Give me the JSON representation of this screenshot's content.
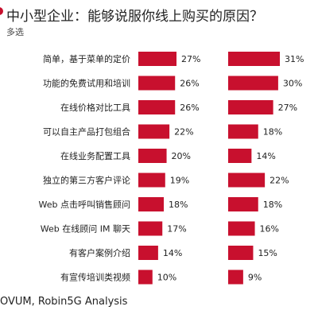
{
  "title": "中小型企业：能够说服你线上购买的原因？",
  "subtitle": "多选",
  "source": "OVUM, Robin5G Analysis",
  "colors": {
    "bar": "#c8102e",
    "accent": "#c8102e"
  },
  "chart_data": {
    "type": "bar",
    "orientation": "horizontal",
    "categories": [
      "简单，基于菜单的定价",
      "功能的免费试用和培训",
      "在线价格对比工具",
      "可以自主产品打包组合",
      "在线业务配置工具",
      "独立的第三方客户评论",
      "Web 点击呼叫销售顾问",
      "Web 在线顾问 IM 聊天",
      "有客户案例介绍",
      "有宣传培训类视频"
    ],
    "series": [
      {
        "values": [
          27,
          26,
          26,
          22,
          20,
          19,
          18,
          17,
          14,
          10
        ],
        "labels": [
          "27%",
          "26%",
          "26%",
          "22%",
          "20%",
          "19%",
          "18%",
          "17%",
          "14%",
          "10%"
        ]
      },
      {
        "values": [
          31,
          30,
          27,
          18,
          14,
          22,
          18,
          16,
          15,
          9
        ],
        "labels": [
          "31%",
          "30%",
          "27%",
          "18%",
          "14%",
          "22%",
          "18%",
          "16%",
          "15%",
          "9%"
        ]
      }
    ],
    "unit": "%",
    "xlim": [
      0,
      31
    ]
  }
}
